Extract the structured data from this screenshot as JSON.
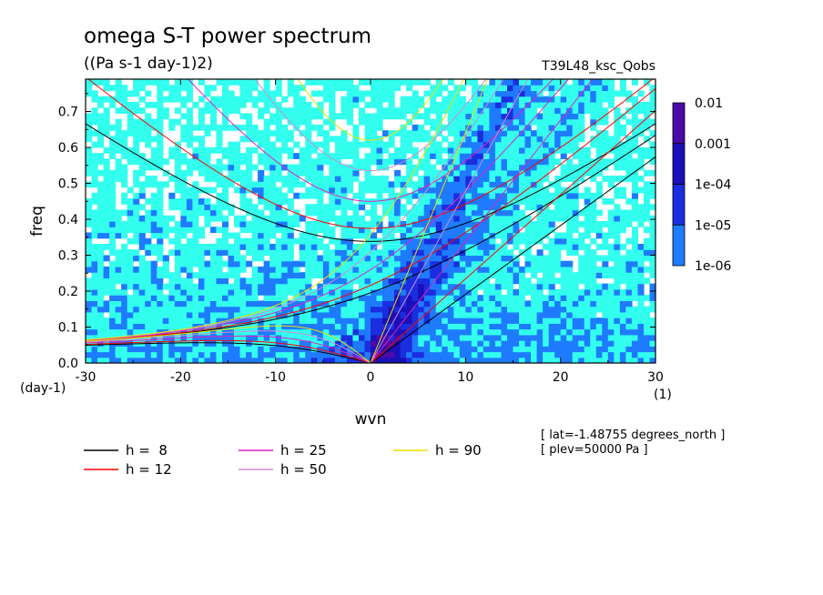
{
  "chart_data": {
    "type": "heatmap",
    "title": "omega S-T power spectrum",
    "subtitle": "((Pa s-1 day-1)2)",
    "run_label": "T39L48_ksc_Qobs",
    "xlabel": "wvn",
    "ylabel": "freq",
    "x_unit": "(1)",
    "y_unit": "(day-1)",
    "xlim": [
      -30,
      30
    ],
    "ylim": [
      0,
      0.79
    ],
    "x_ticks": [
      -30,
      -20,
      -10,
      0,
      10,
      20,
      30
    ],
    "x_tick_labels": [
      "-30",
      "-20",
      "-10",
      "0",
      "10",
      "20",
      "30"
    ],
    "y_ticks": [
      0,
      0.1,
      0.2,
      0.3,
      0.4,
      0.5,
      0.6,
      0.7
    ],
    "y_tick_labels": [
      "0.0",
      "0.1",
      "0.2",
      "0.3",
      "0.4",
      "0.5",
      "0.6",
      "0.7"
    ],
    "colorbar": {
      "levels": [
        "1e-06",
        "1e-05",
        "1e-04",
        "0.001",
        "0.01"
      ],
      "colors": [
        "#ffffff",
        "#33ffee",
        "#1e7bff",
        "#1a2ee0",
        "#1a10b8",
        "#4b0aa8"
      ]
    },
    "dispersion_curves": [
      {
        "name": "h =  8",
        "h": 8,
        "color": "#000000"
      },
      {
        "name": "h = 12",
        "h": 12,
        "color": "#ff0000"
      },
      {
        "name": "h = 25",
        "h": 25,
        "color": "#e020c0"
      },
      {
        "name": "h = 50",
        "h": 50,
        "color": "#d08ad0"
      },
      {
        "name": "h = 90",
        "h": 90,
        "color": "#e8e000"
      }
    ],
    "annotations": [
      "[ lat=-1.48755 degrees_north ]",
      "[ plev=50000 Pa ]"
    ]
  }
}
